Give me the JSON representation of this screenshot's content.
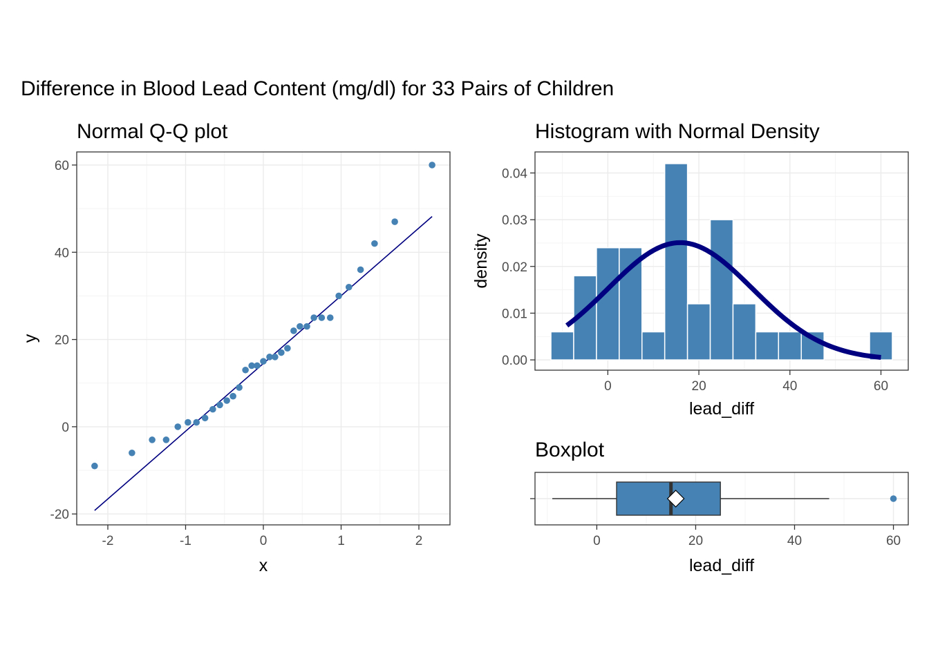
{
  "figure": {
    "title": "Difference in Blood Lead Content (mg/dl) for 33 Pairs of Children"
  },
  "colors": {
    "point": "#4682b4",
    "bar": "#4682b4",
    "line": "#000080",
    "box_fill": "#4682b4",
    "mean_marker": "#ffffff"
  },
  "chart_data": [
    {
      "type": "scatter",
      "title": "Normal Q-Q plot",
      "xlabel": "x",
      "ylabel": "y",
      "xlim": [
        -2.4,
        2.4
      ],
      "ylim": [
        -22.5,
        63
      ],
      "xticks": [
        -2,
        -1,
        0,
        1,
        2
      ],
      "yticks": [
        -20,
        0,
        20,
        40,
        60
      ],
      "grid": true,
      "points": [
        [
          -2.17,
          -9
        ],
        [
          -1.69,
          -6
        ],
        [
          -1.43,
          -3
        ],
        [
          -1.25,
          -3
        ],
        [
          -1.1,
          0
        ],
        [
          -0.97,
          1
        ],
        [
          -0.86,
          1
        ],
        [
          -0.75,
          2
        ],
        [
          -0.65,
          4
        ],
        [
          -0.56,
          5
        ],
        [
          -0.47,
          6
        ],
        [
          -0.39,
          7
        ],
        [
          -0.31,
          9
        ],
        [
          -0.23,
          13
        ],
        [
          -0.15,
          14
        ],
        [
          -0.08,
          14
        ],
        [
          0.0,
          15
        ],
        [
          0.08,
          16
        ],
        [
          0.15,
          16
        ],
        [
          0.23,
          17
        ],
        [
          0.31,
          18
        ],
        [
          0.39,
          22
        ],
        [
          0.47,
          23
        ],
        [
          0.56,
          23
        ],
        [
          0.65,
          25
        ],
        [
          0.75,
          25
        ],
        [
          0.86,
          25
        ],
        [
          0.97,
          30
        ],
        [
          1.1,
          32
        ],
        [
          1.25,
          36
        ],
        [
          1.43,
          42
        ],
        [
          1.69,
          47
        ],
        [
          2.17,
          60
        ]
      ],
      "reference_line": [
        [
          -2.17,
          -19.2
        ],
        [
          2.17,
          48.2
        ]
      ]
    },
    {
      "type": "bar",
      "title": "Histogram with Normal Density",
      "xlabel": "lead_diff",
      "ylabel": "density",
      "xlim": [
        -16,
        66
      ],
      "ylim": [
        -0.0022,
        0.0445
      ],
      "xticks": [
        0,
        20,
        40,
        60
      ],
      "yticks": [
        0.0,
        0.01,
        0.02,
        0.03,
        0.04
      ],
      "ytick_labels": [
        "0.00",
        "0.01",
        "0.02",
        "0.03",
        "0.04"
      ],
      "grid": true,
      "bin_width": 5,
      "bins": [
        {
          "center": -10,
          "density": 0.006
        },
        {
          "center": -5,
          "density": 0.018
        },
        {
          "center": 0,
          "density": 0.024
        },
        {
          "center": 5,
          "density": 0.024
        },
        {
          "center": 10,
          "density": 0.006
        },
        {
          "center": 15,
          "density": 0.042
        },
        {
          "center": 20,
          "density": 0.012
        },
        {
          "center": 25,
          "density": 0.03
        },
        {
          "center": 30,
          "density": 0.012
        },
        {
          "center": 35,
          "density": 0.006
        },
        {
          "center": 40,
          "density": 0.006
        },
        {
          "center": 45,
          "density": 0.006
        },
        {
          "center": 50,
          "density": 0
        },
        {
          "center": 55,
          "density": 0
        },
        {
          "center": 60,
          "density": 0.006
        }
      ],
      "normal_density": {
        "mean": 15.9,
        "sd": 15.9,
        "from": -9,
        "to": 60
      }
    },
    {
      "type": "box",
      "title": "Boxplot",
      "xlabel": "lead_diff",
      "xlim": [
        -12.5,
        63
      ],
      "xticks": [
        0,
        20,
        40,
        60
      ],
      "grid": true,
      "whisker_low": -9,
      "q1": 4,
      "median": 15,
      "q3": 25,
      "whisker_high": 47,
      "mean": 15.97,
      "outliers": [
        60
      ]
    }
  ]
}
